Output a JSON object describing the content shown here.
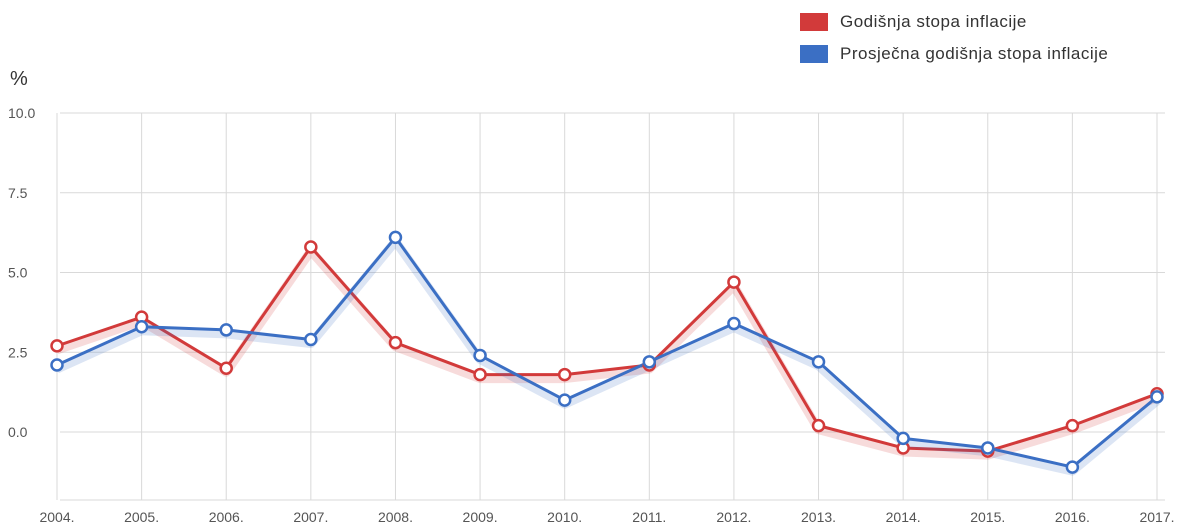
{
  "legend": {
    "items": [
      {
        "label": "Godišnja stopa inflacije",
        "color": "#d23a3a"
      },
      {
        "label": "Prosječna godišnja stopa inflacije",
        "color": "#3b6fc4"
      }
    ]
  },
  "chart_data": {
    "type": "line",
    "title": "",
    "xlabel": "",
    "ylabel": "%",
    "categories": [
      "2004.",
      "2005.",
      "2006.",
      "2007.",
      "2008.",
      "2009.",
      "2010.",
      "2011.",
      "2012.",
      "2013.",
      "2014.",
      "2015.",
      "2016.",
      "2017."
    ],
    "ylim": [
      -2.0,
      10.0
    ],
    "yticks": [
      10.0,
      7.5,
      5.0,
      2.5,
      0.0
    ],
    "ytick_labels": [
      "10.0",
      "7.5",
      "5.0",
      "2.5",
      "0.0"
    ],
    "grid": true,
    "legend_position": "top-right",
    "series": [
      {
        "name": "Godišnja stopa inflacije",
        "color": "#d23a3a",
        "values": [
          2.7,
          3.6,
          2.0,
          5.8,
          2.8,
          1.8,
          1.8,
          2.1,
          4.7,
          0.2,
          -0.5,
          -0.6,
          0.2,
          1.2
        ]
      },
      {
        "name": "Prosječna godišnja stopa inflacije",
        "color": "#3b6fc4",
        "values": [
          2.1,
          3.3,
          3.2,
          2.9,
          6.1,
          2.4,
          1.0,
          2.2,
          3.4,
          2.2,
          -0.2,
          -0.5,
          -1.1,
          1.1
        ]
      }
    ]
  }
}
